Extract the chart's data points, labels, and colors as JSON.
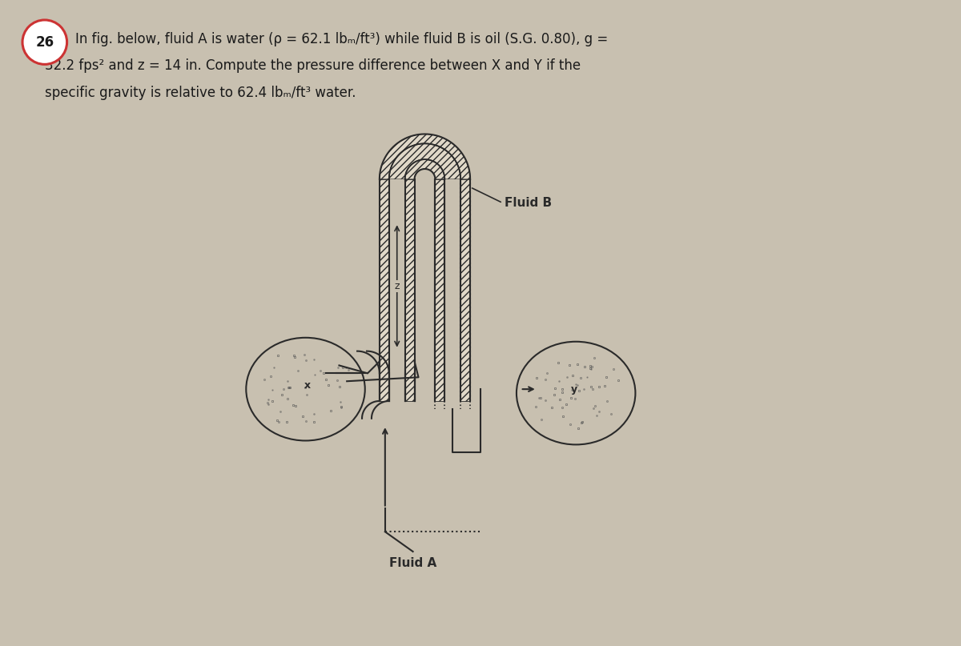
{
  "bg_color": "#c8c0b0",
  "title_number": "26",
  "title_circle_edge": "#cc3333",
  "line1": "In fig. below, fluid A is water (ρ = 62.1 lbₘ/ft³) while fluid B is oil (S.G. 0.80), g =",
  "line2": "32.2 fps² and z = 14 in. Compute the pressure difference between X and Y if the",
  "line3": "specific gravity is relative to 62.4 lbₘ/ft³ water.",
  "label_fluid_b": "Fluid B",
  "label_fluid_a": "Fluid A",
  "label_z": "z",
  "label_x": "x",
  "label_y": "y",
  "text_color": "#1a1a1a",
  "diagram_color": "#2a2a2a",
  "pipe_fill": "#e8e0d0",
  "hatch_color": "#555555",
  "dot_color": "#666666"
}
